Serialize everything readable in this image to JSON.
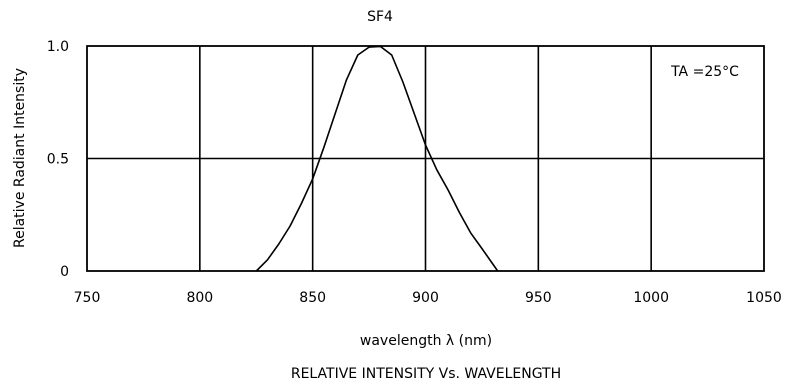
{
  "chart_data": {
    "type": "line",
    "title": "SF4",
    "caption": "RELATIVE INTENSITY Vs. WAVELENGTH",
    "xlabel": "wavelength λ (nm)",
    "ylabel": "Relative Radiant Intensity",
    "annotation": "TA =25°C",
    "xlim": [
      750,
      1050
    ],
    "ylim": [
      0,
      1.0
    ],
    "xticks": [
      750,
      800,
      850,
      900,
      950,
      1000,
      1050
    ],
    "xtick_labels": [
      "750",
      "800",
      "850",
      "900",
      "950",
      "1000",
      "1050"
    ],
    "yticks": [
      0,
      0.5,
      1.0
    ],
    "ytick_labels": [
      "0",
      "0.5",
      "1.0"
    ],
    "grid": true,
    "series": [
      {
        "x": [
          825,
          830,
          835,
          840,
          845,
          850,
          855,
          860,
          865,
          870,
          875,
          880,
          885,
          890,
          895,
          900,
          905,
          910,
          915,
          920,
          925,
          932
        ],
        "y": [
          0.0,
          0.05,
          0.12,
          0.2,
          0.3,
          0.41,
          0.55,
          0.7,
          0.85,
          0.96,
          0.995,
          0.998,
          0.96,
          0.84,
          0.7,
          0.56,
          0.45,
          0.36,
          0.26,
          0.17,
          0.1,
          0.0
        ]
      }
    ]
  }
}
